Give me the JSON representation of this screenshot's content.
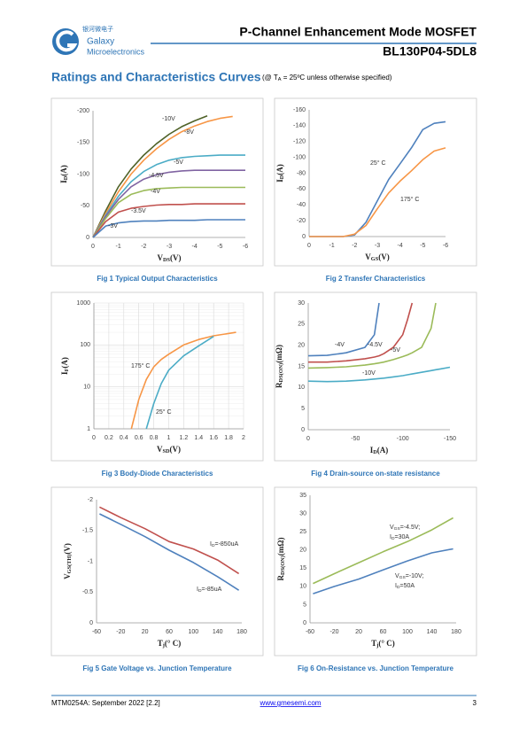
{
  "header": {
    "logo_cn": "银河微电子",
    "logo_en1": "Galaxy",
    "logo_en2": "Microelectronics",
    "title": "P-Channel Enhancement Mode MOSFET",
    "part": "BL130P04-5DL8"
  },
  "section": {
    "title": "Ratings and Characteristics Curves",
    "condition": [
      "(@ T",
      "A",
      " = 25ºC unless otherwise specified)"
    ]
  },
  "chart_data": [
    {
      "type": "line",
      "caption": "Fig 1 Typical Output Characteristics",
      "xlabel": [
        "V",
        "DS",
        "(V)"
      ],
      "ylabel": [
        "I",
        "D",
        "(A)"
      ],
      "x": [
        0,
        -0.5,
        -1,
        -1.5,
        -2,
        -2.5,
        -3,
        -3.5,
        -4,
        -4.5,
        -5,
        -5.5,
        -6
      ],
      "xlim": [
        0,
        -6
      ],
      "xticks": [
        0,
        -1,
        -2,
        -3,
        -4,
        -5,
        -6
      ],
      "ylim": [
        0,
        -200
      ],
      "yticks": [
        0,
        -50,
        -100,
        -150,
        -200
      ],
      "grid": false,
      "series": [
        {
          "name": "-10V",
          "color": "#4f6228",
          "values": [
            0,
            -42,
            -80,
            -108,
            -130,
            -148,
            -163,
            -175,
            -184,
            -192,
            null,
            null,
            null
          ]
        },
        {
          "name": "-8V",
          "color": "#f79646",
          "values": [
            0,
            -38,
            -72,
            -100,
            -122,
            -140,
            -155,
            -167,
            -176,
            -183,
            -188,
            -191,
            null
          ]
        },
        {
          "name": "-5V",
          "color": "#4bacc6",
          "values": [
            0,
            -35,
            -65,
            -88,
            -104,
            -115,
            -122,
            -126,
            -128,
            -129,
            -130,
            -130,
            -130
          ]
        },
        {
          "name": "-4.5V",
          "color": "#8064a2",
          "values": [
            0,
            -33,
            -60,
            -80,
            -92,
            -99,
            -103,
            -105,
            -106,
            -106,
            -106,
            -106,
            -106
          ]
        },
        {
          "name": "-4V",
          "color": "#9bbb59",
          "values": [
            0,
            -30,
            -55,
            -68,
            -74,
            -77,
            -78,
            -79,
            -79,
            -79,
            -79,
            -79,
            -79
          ]
        },
        {
          "name": "-3.5V",
          "color": "#c0504d",
          "values": [
            0,
            -25,
            -40,
            -46,
            -49,
            -51,
            -52,
            -52,
            -53,
            -53,
            -53,
            -53,
            -53
          ]
        },
        {
          "name": "-3V",
          "color": "#4f81bd",
          "values": [
            0,
            -18,
            -23,
            -25,
            -26,
            -26,
            -27,
            -27,
            -27,
            -28,
            -28,
            -28,
            -28
          ]
        }
      ]
    },
    {
      "type": "line",
      "caption": "Fig 2 Transfer Characteristics",
      "xlabel": [
        "V",
        "GS",
        "(V)"
      ],
      "ylabel": [
        "I",
        "D",
        "(A)"
      ],
      "x": [
        0,
        -0.5,
        -1,
        -1.5,
        -2,
        -2.5,
        -3,
        -3.5,
        -4,
        -4.5,
        -5,
        -5.5,
        -6
      ],
      "xlim": [
        0,
        -6
      ],
      "xticks": [
        0,
        -1,
        -2,
        -3,
        -4,
        -5,
        -6
      ],
      "ylim": [
        0,
        -160
      ],
      "yticks": [
        0,
        -20,
        -40,
        -60,
        -80,
        -100,
        -120,
        -140,
        -160
      ],
      "grid": false,
      "series": [
        {
          "name": "25° C",
          "color": "#4f81bd",
          "values": [
            0,
            0,
            0,
            0,
            -2,
            -18,
            -45,
            -72,
            -92,
            -112,
            -135,
            -143,
            -145
          ]
        },
        {
          "name": "175° C",
          "color": "#f79646",
          "values": [
            0,
            0,
            0,
            0,
            -3,
            -14,
            -35,
            -55,
            -70,
            -83,
            -97,
            -108,
            -112
          ]
        }
      ]
    },
    {
      "type": "line",
      "caption": "Fig 3 Body-Diode Characteristics",
      "xlabel": [
        "V",
        "SD",
        "(V)"
      ],
      "ylabel": [
        "I",
        "F",
        "(A)"
      ],
      "x": [
        0.5,
        0.6,
        0.7,
        0.8,
        0.9,
        1.0,
        1.2,
        1.4,
        1.6,
        1.9
      ],
      "xlim": [
        0,
        2
      ],
      "xticks": [
        0,
        0.2,
        0.4,
        0.6,
        0.8,
        1,
        1.2,
        1.4,
        1.6,
        1.8,
        2
      ],
      "ylim": [
        1,
        1000
      ],
      "yticks": [
        1,
        10,
        100,
        1000
      ],
      "yscale": "log",
      "grid": true,
      "series": [
        {
          "name": "175° C",
          "color": "#f79646",
          "values": [
            1,
            5,
            15,
            30,
            45,
            60,
            100,
            135,
            165,
            200
          ]
        },
        {
          "name": "25° C",
          "color": "#4bacc6",
          "values": [
            null,
            null,
            1,
            4,
            12,
            25,
            55,
            95,
            160,
            null
          ]
        }
      ]
    },
    {
      "type": "line",
      "caption": "Fig 4 Drain-source on-state resistance",
      "xlabel": [
        "I",
        "D",
        "(A)"
      ],
      "ylabel": [
        "R",
        "DS(ON)",
        "(mΩ)"
      ],
      "x": [
        0,
        -20,
        -40,
        -60,
        -70,
        -75,
        -80,
        -90,
        -100,
        -105,
        -110,
        -120,
        -130,
        -135,
        -140,
        -150
      ],
      "xlim": [
        0,
        -150
      ],
      "xticks": [
        0,
        -50,
        -100,
        -150
      ],
      "ylim": [
        0,
        30
      ],
      "yticks": [
        0,
        5,
        10,
        15,
        20,
        25,
        30
      ],
      "grid": false,
      "series": [
        {
          "name": "-4V",
          "color": "#4f81bd",
          "values": [
            17.5,
            17.6,
            18.2,
            19.5,
            22.5,
            30,
            null,
            null,
            null,
            null,
            null,
            null,
            null,
            null,
            null,
            null
          ]
        },
        {
          "name": "-4.5V",
          "color": "#c0504d",
          "values": [
            16,
            16,
            16.3,
            16.8,
            17.2,
            17.5,
            18,
            19.5,
            22.5,
            26,
            30,
            null,
            null,
            null,
            null,
            null
          ]
        },
        {
          "name": "-5V",
          "color": "#9bbb59",
          "values": [
            14.6,
            14.7,
            14.9,
            15.3,
            15.6,
            15.8,
            16,
            16.6,
            17.3,
            17.7,
            18.2,
            19.5,
            24,
            30,
            null,
            null
          ]
        },
        {
          "name": "-10V",
          "color": "#4bacc6",
          "values": [
            11.5,
            11.4,
            11.5,
            11.8,
            12,
            12.1,
            12.2,
            12.5,
            12.8,
            13,
            13.2,
            13.6,
            14,
            14.2,
            14.4,
            14.8
          ]
        }
      ]
    },
    {
      "type": "line",
      "caption": "Fig 5 Gate Voltage vs. Junction Temperature",
      "xlabel": [
        "T",
        "j",
        "(° C)"
      ],
      "ylabel": [
        "V",
        "GS(TH)",
        "(V)"
      ],
      "x": [
        -55,
        -20,
        20,
        60,
        100,
        140,
        175
      ],
      "xlim": [
        -60,
        180
      ],
      "xticks": [
        -60,
        -20,
        20,
        60,
        100,
        140,
        180
      ],
      "ylim": [
        0,
        -2
      ],
      "yticks": [
        0,
        -0.5,
        -1,
        -1.5,
        -2
      ],
      "grid": false,
      "series": [
        {
          "name": [
            "I",
            "D",
            "=-850uA"
          ],
          "color": "#c0504d",
          "values": [
            -1.88,
            -1.71,
            -1.53,
            -1.32,
            -1.2,
            -1.02,
            -0.8
          ]
        },
        {
          "name": [
            "I",
            "D",
            "=-85uA"
          ],
          "color": "#4f81bd",
          "values": [
            -1.77,
            -1.6,
            -1.4,
            -1.18,
            -0.98,
            -0.75,
            -0.53
          ]
        }
      ]
    },
    {
      "type": "line",
      "caption": "Fig 6 On-Resistance vs. Junction Temperature",
      "xlabel": [
        "T",
        "j",
        "(° C)"
      ],
      "ylabel": [
        "R",
        "DS(ON)",
        "(mΩ)"
      ],
      "x": [
        -55,
        -20,
        20,
        60,
        100,
        140,
        175
      ],
      "xlim": [
        -60,
        180
      ],
      "xticks": [
        -60,
        -20,
        20,
        60,
        100,
        140,
        180
      ],
      "ylim": [
        0,
        35
      ],
      "yticks": [
        0,
        5,
        10,
        15,
        20,
        25,
        30,
        35
      ],
      "grid": false,
      "series": [
        {
          "name": [
            [
              "V",
              "GS",
              "=-4.5V;"
            ],
            [
              "I",
              "D",
              "=30A"
            ]
          ],
          "color": "#9bbb59",
          "values": [
            10.8,
            13.5,
            16.5,
            19.5,
            22.3,
            25.5,
            28.8
          ]
        },
        {
          "name": [
            [
              "V",
              "GS",
              "=-10V;"
            ],
            [
              "I",
              "D",
              "=50A"
            ]
          ],
          "color": "#4f81bd",
          "values": [
            8,
            10,
            12,
            14.5,
            17,
            19.2,
            20.3
          ]
        }
      ]
    }
  ],
  "footer": {
    "doc": "MTM0254A: September 2022 [2.2]",
    "url": "www.gmesemi.com",
    "page": "3"
  }
}
